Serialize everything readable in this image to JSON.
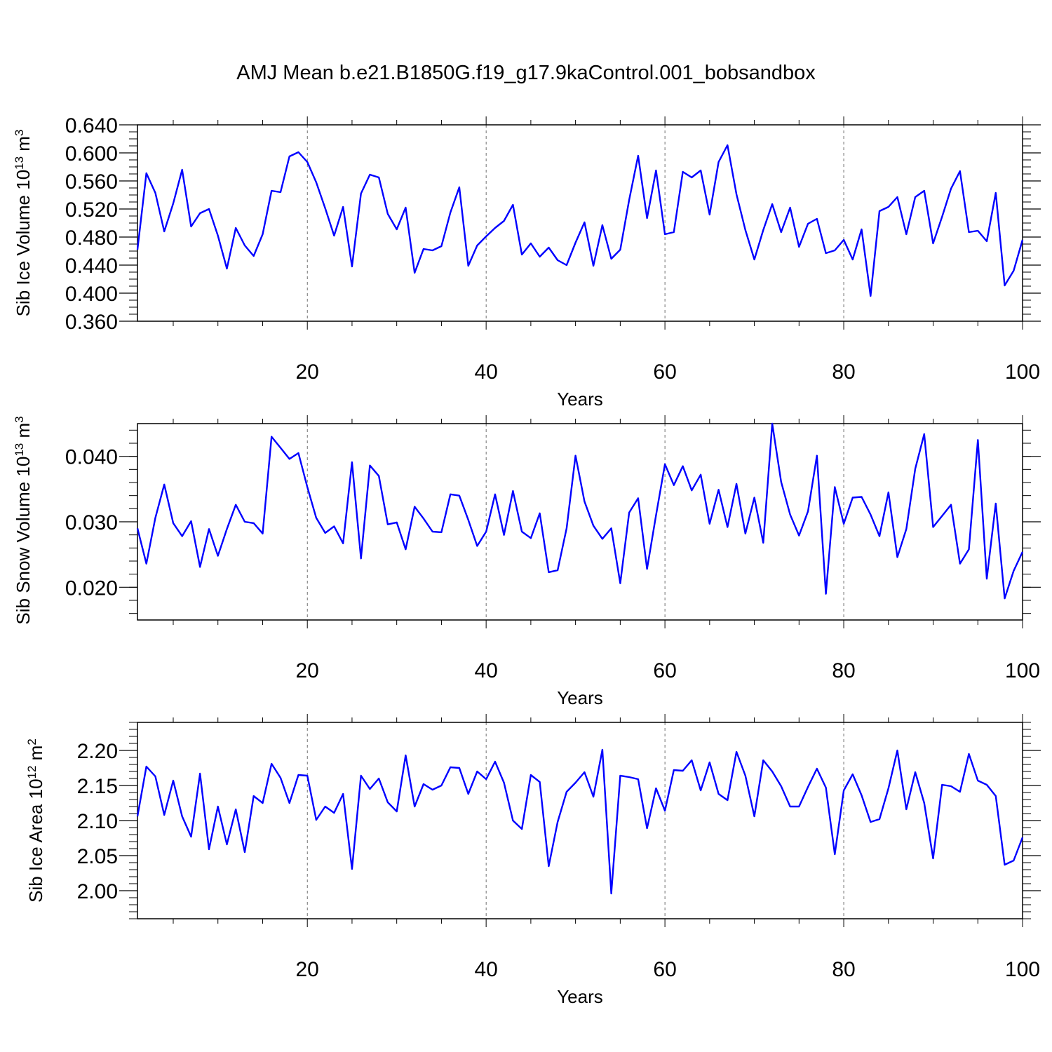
{
  "figure_title": "AMJ Mean b.e21.B1850G.f19_g17.9kaControl.001_bobsandbox",
  "colors": {
    "line": "#0000ff",
    "axes": "#000000",
    "grid": "#000000"
  },
  "chart_data": [
    {
      "type": "line",
      "title": "",
      "xlabel": "Years",
      "ylabel": "Sib Ice Volume 10",
      "ylabel_sup": "13",
      "ylabel_unit": " m",
      "ylabel_unit_sup": "3",
      "xlim": [
        1,
        100
      ],
      "ylim": [
        0.36,
        0.64
      ],
      "xticks": [
        "20",
        "40",
        "60",
        "80",
        "100"
      ],
      "yticks": [
        "0.640",
        "0.600",
        "0.560",
        "0.520",
        "0.480",
        "0.440",
        "0.400",
        "0.360"
      ],
      "grid": "vertical dashed at major x ticks",
      "series": [
        {
          "x": [
            1,
            2,
            3,
            4,
            5,
            6,
            7,
            8,
            9,
            10,
            11,
            12,
            13,
            14,
            15,
            16,
            17,
            18,
            19,
            20,
            21,
            22,
            23,
            24,
            25,
            26,
            27,
            28,
            29,
            30,
            31,
            32,
            33,
            34,
            35,
            36,
            37,
            38,
            39,
            40,
            41,
            42,
            43,
            44,
            45,
            46,
            47,
            48,
            49,
            50,
            51,
            52,
            53,
            54,
            55,
            56,
            57,
            58,
            59,
            60,
            61,
            62,
            63,
            64,
            65,
            66,
            67,
            68,
            69,
            70,
            71,
            72,
            73,
            74,
            75,
            76,
            77,
            78,
            79,
            80,
            81,
            82,
            83,
            84,
            85,
            86,
            87,
            88,
            89,
            90,
            91,
            92,
            93,
            94,
            95,
            96,
            97,
            98,
            99,
            100
          ],
          "values": [
            0.462,
            0.571,
            0.543,
            0.488,
            0.528,
            0.576,
            0.495,
            0.514,
            0.52,
            0.482,
            0.435,
            0.493,
            0.468,
            0.453,
            0.484,
            0.546,
            0.544,
            0.595,
            0.601,
            0.587,
            0.558,
            0.521,
            0.482,
            0.523,
            0.438,
            0.542,
            0.569,
            0.565,
            0.513,
            0.491,
            0.522,
            0.429,
            0.463,
            0.461,
            0.467,
            0.515,
            0.551,
            0.439,
            0.468,
            0.481,
            0.493,
            0.503,
            0.526,
            0.455,
            0.471,
            0.452,
            0.465,
            0.447,
            0.44,
            0.472,
            0.501,
            0.439,
            0.497,
            0.449,
            0.462,
            0.533,
            0.596,
            0.507,
            0.575,
            0.484,
            0.487,
            0.573,
            0.565,
            0.575,
            0.512,
            0.587,
            0.611,
            0.541,
            0.49,
            0.448,
            0.49,
            0.527,
            0.487,
            0.522,
            0.466,
            0.499,
            0.506,
            0.457,
            0.461,
            0.476,
            0.448,
            0.491,
            0.396,
            0.517,
            0.523,
            0.537,
            0.484,
            0.537,
            0.546,
            0.471,
            0.509,
            0.549,
            0.574,
            0.487,
            0.489,
            0.474,
            0.543,
            0.411,
            0.432,
            0.476
          ]
        }
      ]
    },
    {
      "type": "line",
      "title": "",
      "xlabel": "Years",
      "ylabel": "Sib Snow Volume 10",
      "ylabel_sup": "13",
      "ylabel_unit": " m",
      "ylabel_unit_sup": "3",
      "xlim": [
        1,
        100
      ],
      "ylim": [
        0.015,
        0.045
      ],
      "xticks": [
        "20",
        "40",
        "60",
        "80",
        "100"
      ],
      "yticks": [
        "0.040",
        "0.030",
        "0.020"
      ],
      "grid": "vertical dashed at major x ticks",
      "series": [
        {
          "x": [
            1,
            2,
            3,
            4,
            5,
            6,
            7,
            8,
            9,
            10,
            11,
            12,
            13,
            14,
            15,
            16,
            17,
            18,
            19,
            20,
            21,
            22,
            23,
            24,
            25,
            26,
            27,
            28,
            29,
            30,
            31,
            32,
            33,
            34,
            35,
            36,
            37,
            38,
            39,
            40,
            41,
            42,
            43,
            44,
            45,
            46,
            47,
            48,
            49,
            50,
            51,
            52,
            53,
            54,
            55,
            56,
            57,
            58,
            59,
            60,
            61,
            62,
            63,
            64,
            65,
            66,
            67,
            68,
            69,
            70,
            71,
            72,
            73,
            74,
            75,
            76,
            77,
            78,
            79,
            80,
            81,
            82,
            83,
            84,
            85,
            86,
            87,
            88,
            89,
            90,
            91,
            92,
            93,
            94,
            95,
            96,
            97,
            98,
            99,
            100
          ],
          "values": [
            0.029,
            0.0236,
            0.0306,
            0.0357,
            0.0298,
            0.0278,
            0.0301,
            0.0231,
            0.0289,
            0.0248,
            0.0289,
            0.0326,
            0.03,
            0.0298,
            0.0282,
            0.043,
            0.0413,
            0.0396,
            0.0405,
            0.0353,
            0.0306,
            0.0283,
            0.0293,
            0.0267,
            0.0391,
            0.0244,
            0.0386,
            0.037,
            0.0296,
            0.0299,
            0.0258,
            0.0323,
            0.0305,
            0.0285,
            0.0284,
            0.0342,
            0.034,
            0.0303,
            0.0263,
            0.0285,
            0.0342,
            0.028,
            0.0347,
            0.0285,
            0.0275,
            0.0313,
            0.0223,
            0.0226,
            0.029,
            0.0401,
            0.0331,
            0.0294,
            0.0274,
            0.029,
            0.0206,
            0.0314,
            0.0336,
            0.0228,
            0.031,
            0.0388,
            0.0356,
            0.0385,
            0.0348,
            0.0372,
            0.0297,
            0.0349,
            0.0292,
            0.0358,
            0.0282,
            0.0337,
            0.0268,
            0.045,
            0.0361,
            0.0311,
            0.0279,
            0.0316,
            0.0401,
            0.019,
            0.0353,
            0.0297,
            0.0337,
            0.0338,
            0.0311,
            0.0278,
            0.0345,
            0.0246,
            0.0289,
            0.0381,
            0.0434,
            0.0292,
            0.0309,
            0.0326,
            0.0236,
            0.0258,
            0.0425,
            0.0213,
            0.0328,
            0.0183,
            0.0225,
            0.0254
          ]
        }
      ]
    },
    {
      "type": "line",
      "title": "",
      "xlabel": "Years",
      "ylabel": "Sib Ice Area 10",
      "ylabel_sup": "12",
      "ylabel_unit": " m",
      "ylabel_unit_sup": "2",
      "xlim": [
        1,
        100
      ],
      "ylim": [
        1.96,
        2.24
      ],
      "xticks": [
        "20",
        "40",
        "60",
        "80",
        "100"
      ],
      "yticks": [
        "2.20",
        "2.15",
        "2.10",
        "2.05",
        "2.00"
      ],
      "grid": "vertical dashed at major x ticks",
      "series": [
        {
          "x": [
            1,
            2,
            3,
            4,
            5,
            6,
            7,
            8,
            9,
            10,
            11,
            12,
            13,
            14,
            15,
            16,
            17,
            18,
            19,
            20,
            21,
            22,
            23,
            24,
            25,
            26,
            27,
            28,
            29,
            30,
            31,
            32,
            33,
            34,
            35,
            36,
            37,
            38,
            39,
            40,
            41,
            42,
            43,
            44,
            45,
            46,
            47,
            48,
            49,
            50,
            51,
            52,
            53,
            54,
            55,
            56,
            57,
            58,
            59,
            60,
            61,
            62,
            63,
            64,
            65,
            66,
            67,
            68,
            69,
            70,
            71,
            72,
            73,
            74,
            75,
            76,
            77,
            78,
            79,
            80,
            81,
            82,
            83,
            84,
            85,
            86,
            87,
            88,
            89,
            90,
            91,
            92,
            93,
            94,
            95,
            96,
            97,
            98,
            99,
            100
          ],
          "values": [
            2.106,
            2.177,
            2.163,
            2.108,
            2.157,
            2.106,
            2.077,
            2.167,
            2.059,
            2.12,
            2.066,
            2.116,
            2.055,
            2.135,
            2.125,
            2.181,
            2.161,
            2.125,
            2.165,
            2.164,
            2.101,
            2.12,
            2.111,
            2.138,
            2.031,
            2.164,
            2.145,
            2.16,
            2.126,
            2.113,
            2.193,
            2.12,
            2.152,
            2.144,
            2.15,
            2.176,
            2.175,
            2.138,
            2.17,
            2.159,
            2.184,
            2.154,
            2.1,
            2.088,
            2.165,
            2.155,
            2.035,
            2.098,
            2.141,
            2.154,
            2.169,
            2.134,
            2.201,
            1.996,
            2.164,
            2.162,
            2.159,
            2.089,
            2.146,
            2.114,
            2.172,
            2.171,
            2.186,
            2.143,
            2.183,
            2.138,
            2.129,
            2.198,
            2.164,
            2.106,
            2.186,
            2.17,
            2.149,
            2.12,
            2.12,
            2.148,
            2.174,
            2.147,
            2.052,
            2.143,
            2.166,
            2.136,
            2.098,
            2.102,
            2.146,
            2.2,
            2.116,
            2.169,
            2.125,
            2.046,
            2.151,
            2.149,
            2.141,
            2.195,
            2.157,
            2.151,
            2.135,
            2.037,
            2.043,
            2.076
          ]
        }
      ]
    }
  ]
}
